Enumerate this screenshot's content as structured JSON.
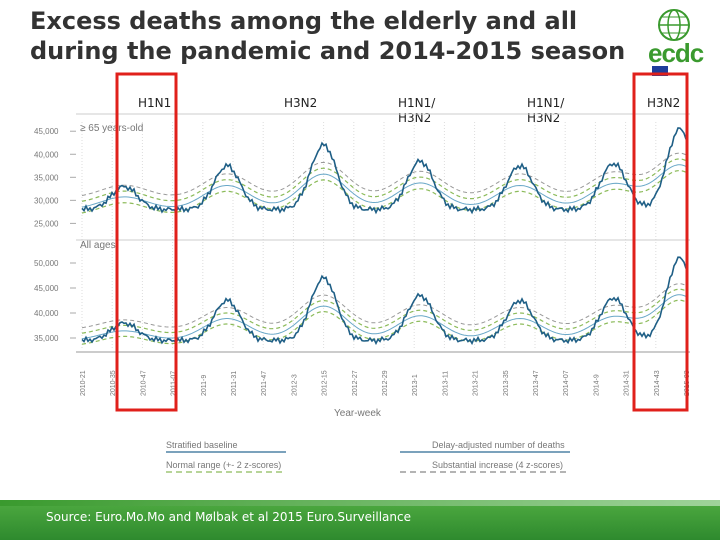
{
  "slide": {
    "title_line1": "Excess deaths among the elderly and all",
    "title_line2": "during the pandemic and 2014-2015 season",
    "source": "Source: Euro.Mo.Mo and Mølbak et al 2015 Euro.Surveillance"
  },
  "logo": {
    "text": "ecdc",
    "colors": {
      "green": "#3a9a2e",
      "flag": "#1e3d9b"
    }
  },
  "season_labels": [
    {
      "lines": [
        "H1N1"
      ]
    },
    {
      "lines": [
        "H3N2"
      ]
    },
    {
      "lines": [
        "H1N1/",
        "H3N2"
      ]
    },
    {
      "lines": [
        "H1N1/",
        "H3N2"
      ]
    },
    {
      "lines": [
        "H3N2"
      ]
    }
  ],
  "highlight_color": "#e0201b",
  "chart_data": {
    "type": "line",
    "xlabel": "Year-week",
    "x_ticks": [
      "2010-21",
      "2010-35",
      "2010-47",
      "2011-07",
      "2011-9",
      "2011-31",
      "2011-47",
      "2012-3",
      "2012-15",
      "2012-27",
      "2012-29",
      "2013-1",
      "2013-11",
      "2013-21",
      "2013-35",
      "2013-47",
      "2014-07",
      "2014-9",
      "2014-31",
      "2014-43",
      "2015-03"
    ],
    "highlighted_periods": [
      [
        "2010-35",
        "2011-07"
      ],
      [
        "2014-43",
        "2015-03"
      ]
    ],
    "legend": [
      {
        "label": "Stratified baseline",
        "style": "solid",
        "color": "#2c6b93"
      },
      {
        "label": "Delay-adjusted number of deaths",
        "style": "solid",
        "color": "#2c6b93"
      },
      {
        "label": "Normal range (+- 2 z-scores)",
        "style": "dashed",
        "color": "#8cbb5a"
      },
      {
        "label": "Substantial increase (4 z-scores)",
        "style": "dashed",
        "color": "#888888"
      }
    ],
    "panels": [
      {
        "title": "≥ 65 years-old",
        "y_ticks": [
          "45,000",
          "40,000",
          "35,000",
          "30,000",
          "25,000"
        ],
        "ylim": [
          24000,
          47000
        ],
        "season_peaks": [
          33000,
          37500,
          42000,
          38500,
          37500,
          38000,
          45500
        ],
        "trough": 28000
      },
      {
        "title": "All ages",
        "y_ticks": [
          "50,000",
          "45,000",
          "40,000",
          "35,000"
        ],
        "ylim": [
          33000,
          53000
        ],
        "season_peaks": [
          38000,
          42500,
          47000,
          43500,
          42500,
          43000,
          51000
        ],
        "trough": 34500
      }
    ]
  }
}
